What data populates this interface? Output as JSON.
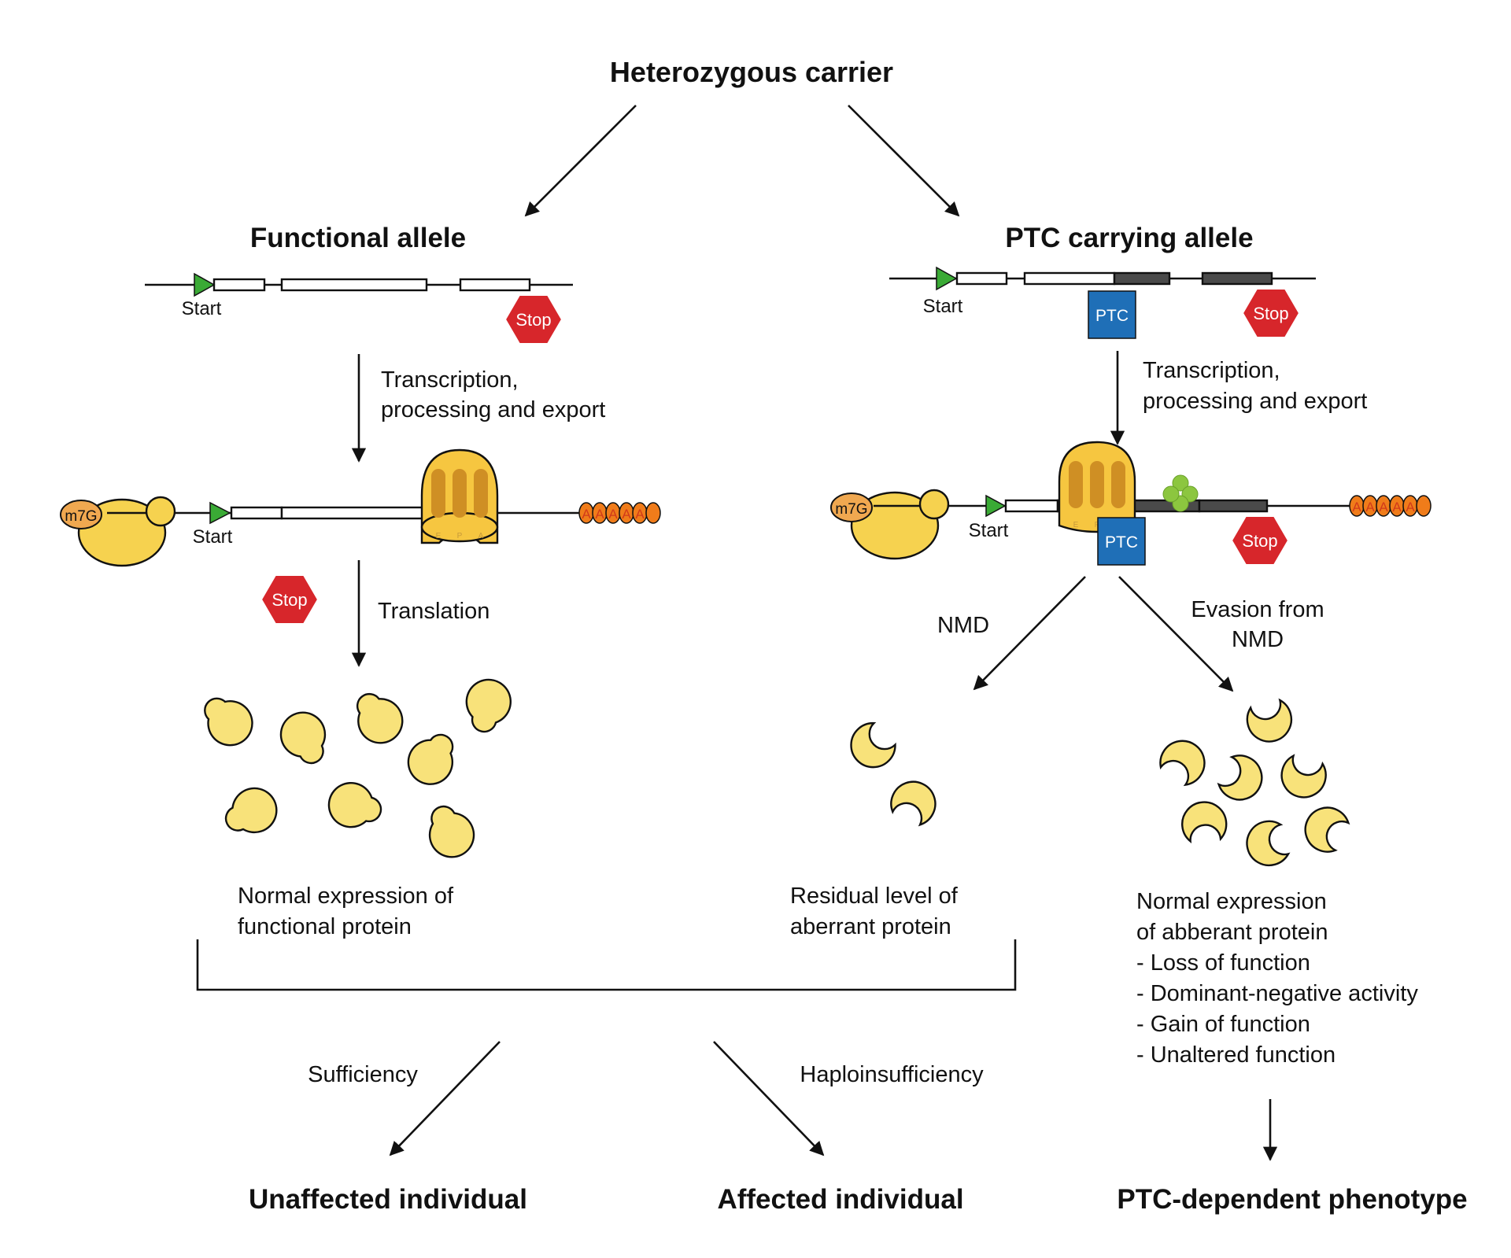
{
  "title": "Heterozygous carrier",
  "left_allele": {
    "heading": "Functional allele",
    "start_label": "Start",
    "stop_label": "Stop",
    "step1": [
      "Transcription,",
      "processing and export"
    ],
    "m7g_label": "m7G",
    "mrna_start_label": "Start",
    "ribosome_sites": [
      "E",
      "P",
      "A"
    ],
    "polyA": [
      "A",
      "A",
      "A",
      "A",
      "A"
    ],
    "stop_label_2": "Stop",
    "step2": "Translation",
    "outcome": [
      "Normal expression of",
      "functional protein"
    ]
  },
  "right_allele": {
    "heading": "PTC carrying allele",
    "start_label": "Start",
    "ptc_label": "PTC",
    "stop_label": "Stop",
    "step1": [
      "Transcription,",
      "processing and export"
    ],
    "m7g_label": "m7G",
    "mrna_start_label": "Start",
    "ribosome_sites": [
      "E",
      "P"
    ],
    "ptc_label_2": "PTC",
    "stop_label_2": "Stop",
    "polyA": [
      "A",
      "A",
      "A",
      "A",
      "A"
    ],
    "nmd_label": "NMD",
    "evasion_label": [
      "Evasion from",
      "NMD"
    ],
    "nmd_outcome": [
      "Residual level of",
      "aberrant protein"
    ],
    "evasion_outcome": [
      "Normal expression",
      "of abberant protein",
      "- Loss of function",
      "- Dominant-negative activity",
      "- Gain of function",
      "- Unaltered function"
    ]
  },
  "bottom": {
    "sufficiency_label": "Sufficiency",
    "haplo_label": "Haploinsufficiency",
    "unaffected": "Unaffected individual",
    "affected": "Affected individual",
    "ptc_phenotype": "PTC-dependent phenotype"
  },
  "colors": {
    "start_triangle": "#3aaa35",
    "stop_hexagon": "#d7262b",
    "ptc_square": "#1f6fb7",
    "protein": "#f8e27a",
    "ribosome": "#f6c640",
    "polyA": "#f07c1a",
    "ejc": "#8cc63f"
  }
}
